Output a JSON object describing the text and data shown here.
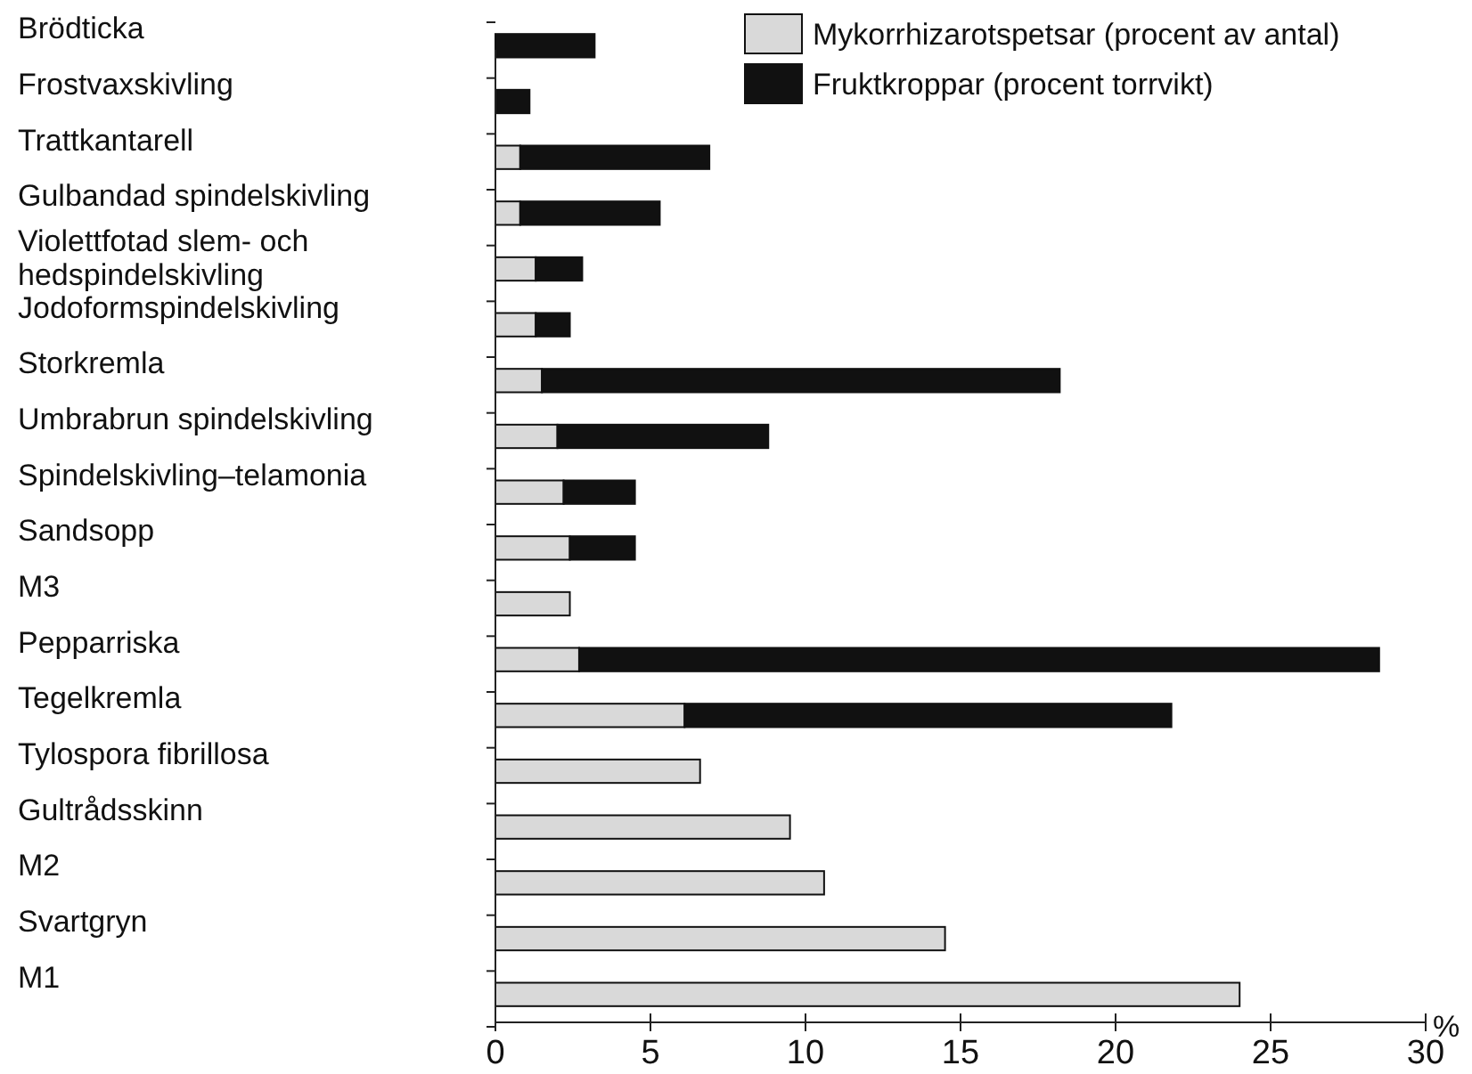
{
  "chart_data": {
    "type": "bar",
    "orientation": "horizontal",
    "stacked": true,
    "xlabel": "%",
    "categories": [
      "Brödticka",
      "Frostvaxskivling",
      "Trattkantarell",
      "Gulbandad spindelskivling",
      "Violettfotad slem- och hedspindelskivling",
      "Jodoformspindelskivling",
      "Storkremla",
      "Umbrabrun spindelskivling",
      "Spindelskivling–telamonia",
      "Sandsopp",
      "M3",
      "Pepparriska",
      "Tegelkremla",
      "Tylospora fibrillosa",
      "Gultrådsskinn",
      "M2",
      "Svartgryn",
      "M1"
    ],
    "series": [
      {
        "name": "Mykorrhizarotspetsar (procent av antal)",
        "color": "#d9d9d9",
        "values": [
          0,
          0,
          0.8,
          0.8,
          1.3,
          1.3,
          1.5,
          2.0,
          2.2,
          2.4,
          2.4,
          2.7,
          6.1,
          6.6,
          9.5,
          10.6,
          14.5,
          24.0
        ]
      },
      {
        "name": "Fruktkroppar (procent torrvikt)",
        "color": "#111111",
        "values": [
          3.2,
          1.1,
          6.1,
          4.5,
          1.5,
          1.1,
          16.7,
          6.8,
          2.3,
          2.1,
          0,
          25.8,
          15.7,
          0,
          0,
          0,
          0,
          0
        ]
      }
    ],
    "xlim": [
      0,
      30
    ],
    "xticks": [
      0,
      5,
      10,
      15,
      20,
      25,
      30
    ],
    "legend": "top right",
    "grid": false
  }
}
